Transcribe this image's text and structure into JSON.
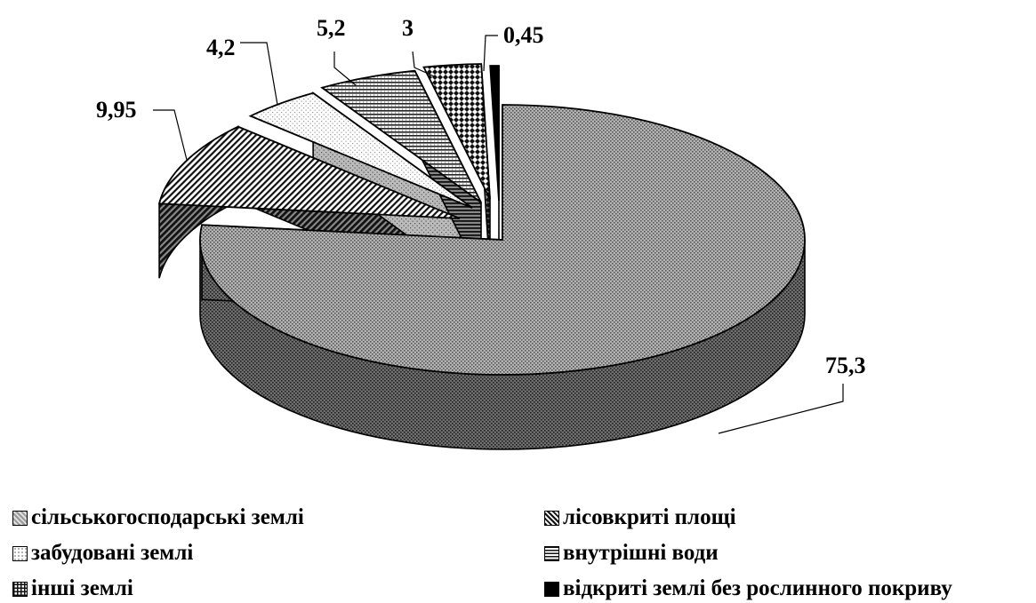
{
  "chart_data": {
    "type": "pie",
    "subtype": "3d-exploded",
    "slices": [
      {
        "label": "сільськогосподарські землі",
        "value": 75.3,
        "value_label": "75,3",
        "pattern": "dots-fine",
        "color": "#9a9a9a"
      },
      {
        "label": "лісовкриті площі",
        "value": 9.95,
        "value_label": "9,95",
        "pattern": "diagonal",
        "color": "#606060"
      },
      {
        "label": "забудовані землі",
        "value": 4.2,
        "value_label": "4,2",
        "pattern": "dots-light",
        "color": "#eeeeee"
      },
      {
        "label": "внутрішні води",
        "value": 5.2,
        "value_label": "5,2",
        "pattern": "horizontal",
        "color": "#b0b0b0"
      },
      {
        "label": "інші землі",
        "value": 3,
        "value_label": "3",
        "pattern": "grid",
        "color": "#7a7a7a"
      },
      {
        "label": "відкриті землі без рослинного покриву",
        "value": 0.45,
        "value_label": "0,45",
        "pattern": "solid",
        "color": "#000000"
      }
    ],
    "legend_position": "bottom"
  }
}
